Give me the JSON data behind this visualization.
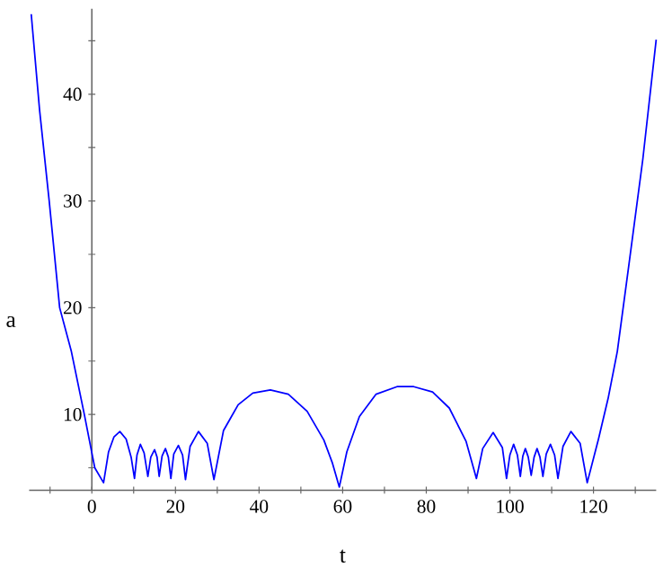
{
  "chart_data": {
    "type": "line",
    "xlabel": "t",
    "ylabel": "a",
    "x": [
      -14.5,
      -12.5,
      -10.2,
      -7.7,
      -4.9,
      -1.8,
      0.7,
      2.8,
      4.0,
      5.3,
      6.7,
      8.2,
      9.4,
      10.2,
      10.8,
      11.6,
      12.5,
      13.4,
      14.1,
      15.0,
      15.6,
      16.1,
      16.8,
      17.6,
      18.3,
      18.9,
      19.6,
      20.7,
      21.7,
      22.4,
      23.5,
      25.5,
      27.6,
      29.2,
      31.5,
      35,
      38.5,
      42.7,
      47,
      51.5,
      55.5,
      57.5,
      59.2,
      61,
      64,
      68,
      73,
      77.0,
      81.5,
      85.5,
      89.5,
      92.0,
      93.5,
      96.0,
      98.2,
      99.2,
      100.0,
      100.9,
      101.8,
      102.5,
      103.1,
      103.7,
      104.4,
      105.1,
      105.8,
      106.5,
      107.2,
      107.9,
      108.7,
      109.7,
      110.7,
      111.5,
      112.7,
      114.6,
      116.8,
      118.5,
      121.2,
      123.5,
      125.7,
      128.5,
      131.8,
      135
    ],
    "series": [
      {
        "color": "#0000ff",
        "values": [
          47.5,
          38.5,
          30,
          20,
          15.9,
          10,
          5,
          3.6,
          6.5,
          7.9,
          8.4,
          7.7,
          6,
          4.0,
          6.2,
          7.2,
          6.4,
          4.2,
          6.0,
          6.7,
          6.0,
          4.2,
          6.1,
          6.8,
          6.0,
          4.0,
          6.3,
          7.1,
          6.2,
          3.9,
          7.0,
          8.4,
          7.3,
          3.9,
          8.5,
          10.9,
          12.0,
          12.3,
          11.9,
          10.3,
          7.6,
          5.5,
          3.2,
          6.5,
          9.8,
          11.9,
          12.6,
          12.6,
          12.1,
          10.6,
          7.5,
          4.0,
          6.8,
          8.3,
          6.9,
          4.0,
          6.2,
          7.2,
          6.2,
          4.2,
          6.1,
          6.8,
          6.0,
          4.3,
          6.0,
          6.8,
          6.0,
          4.2,
          6.3,
          7.2,
          6.2,
          4.0,
          7.0,
          8.4,
          7.3,
          3.6,
          7.7,
          11.5,
          15.9,
          24.1,
          33.9,
          45.1
        ]
      }
    ],
    "xlim": [
      -15,
      135
    ],
    "ylim": [
      2.9,
      48
    ],
    "xticks": [
      {
        "value": -10,
        "label": null
      },
      0,
      {
        "value": 10,
        "label": null
      },
      20,
      {
        "value": 30,
        "label": null
      },
      40,
      {
        "value": 50,
        "label": null
      },
      60,
      {
        "value": 70,
        "label": null
      },
      80,
      {
        "value": 90,
        "label": null
      },
      100,
      {
        "value": 110,
        "label": null
      },
      120,
      {
        "value": 130,
        "label": null
      }
    ],
    "yticks": [
      {
        "value": 5,
        "label": null
      },
      10,
      {
        "value": 15,
        "label": null
      },
      20,
      {
        "value": 25,
        "label": null
      },
      30,
      {
        "value": 35,
        "label": null
      },
      40,
      {
        "value": 45,
        "label": null
      }
    ],
    "marker": "none",
    "line_style": "solid"
  }
}
